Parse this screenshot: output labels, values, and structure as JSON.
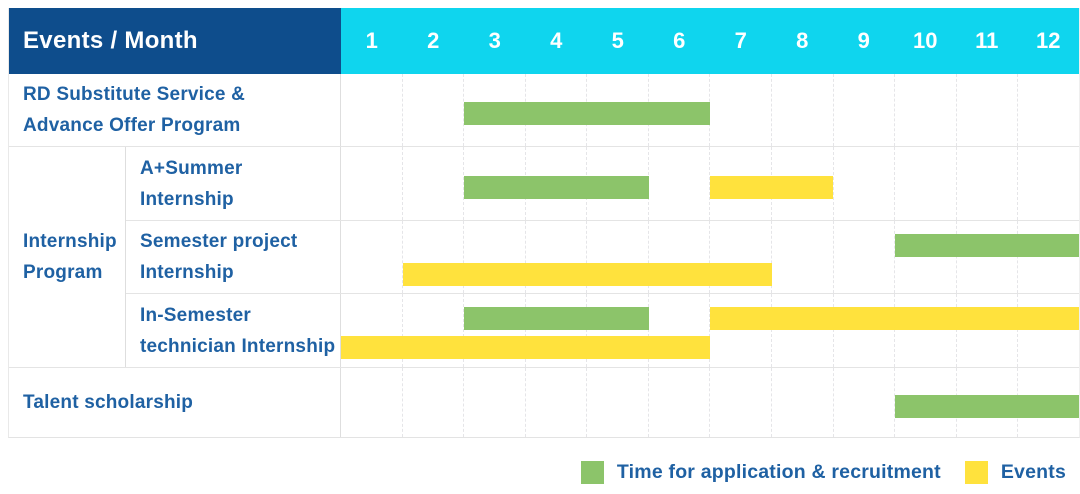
{
  "colors": {
    "navy_header_bg": "#0e4d8c",
    "cyan_months_bg": "#0fd5ee",
    "green_application": "#8cc46a",
    "yellow_event": "#ffe23d",
    "label_text_blue": "#1f61a3"
  },
  "table": {
    "header_label": "Events / Month",
    "months": [
      "1",
      "2",
      "3",
      "4",
      "5",
      "6",
      "7",
      "8",
      "9",
      "10",
      "11",
      "12"
    ],
    "rows": [
      {
        "kind": "simple",
        "name": "rd-substitute",
        "label_lines": [
          "RD Substitute Service &",
          "Advance Offer Program"
        ],
        "bars": [
          {
            "type": "application",
            "start": 3,
            "end": 6,
            "track": "mid"
          }
        ]
      },
      {
        "kind": "group",
        "name": "internship-program",
        "label_lines": [
          "Internship",
          "Program"
        ],
        "children": [
          {
            "name": "a-plus-summer-internship",
            "label_lines": [
              "A+Summer",
              "Internship"
            ],
            "bars": [
              {
                "type": "application",
                "start": 3,
                "end": 5,
                "track": "mid"
              },
              {
                "type": "event",
                "start": 7,
                "end": 8,
                "track": "mid"
              }
            ]
          },
          {
            "name": "semester-project-internship",
            "label_lines": [
              "Semester project",
              "Internship"
            ],
            "bars": [
              {
                "type": "application",
                "start": 10,
                "end": 12,
                "track": "upper"
              },
              {
                "type": "event",
                "start": 2,
                "end": 7,
                "track": "lower"
              }
            ]
          },
          {
            "name": "in-semester-technician-internship",
            "label_lines": [
              "In-Semester",
              "technician Internship"
            ],
            "bars": [
              {
                "type": "application",
                "start": 3,
                "end": 5,
                "track": "upper"
              },
              {
                "type": "event",
                "start": 7,
                "end": 12,
                "track": "upper"
              },
              {
                "type": "event",
                "start": 1,
                "end": 6,
                "track": "lower"
              }
            ]
          }
        ]
      },
      {
        "kind": "simple",
        "name": "talent-scholarship",
        "label_lines": [
          "Talent scholarship"
        ],
        "bars": [
          {
            "type": "application",
            "start": 10,
            "end": 12,
            "track": "mid"
          }
        ]
      }
    ]
  },
  "legend": {
    "items": [
      {
        "type": "application",
        "label": "Time for application & recruitment"
      },
      {
        "type": "event",
        "label": "Events"
      }
    ]
  },
  "chart_data": {
    "type": "table",
    "title": "Events / Month",
    "x_axis": {
      "label": "Month",
      "ticks": [
        1,
        2,
        3,
        4,
        5,
        6,
        7,
        8,
        9,
        10,
        11,
        12
      ],
      "range": [
        1,
        12
      ]
    },
    "grid": true,
    "legend_position": "bottom-right",
    "legend": [
      {
        "name": "Time for application & recruitment",
        "color": "#8cc46a"
      },
      {
        "name": "Events",
        "color": "#ffe23d"
      }
    ],
    "rows": [
      {
        "event": "RD Substitute Service & Advance Offer Program",
        "group": null,
        "application_recruitment_month_ranges": [
          [
            3,
            6
          ]
        ],
        "event_month_ranges": []
      },
      {
        "event": "A+Summer Internship",
        "group": "Internship Program",
        "application_recruitment_month_ranges": [
          [
            3,
            5
          ]
        ],
        "event_month_ranges": [
          [
            7,
            8
          ]
        ]
      },
      {
        "event": "Semester project Internship",
        "group": "Internship Program",
        "application_recruitment_month_ranges": [
          [
            10,
            12
          ]
        ],
        "event_month_ranges": [
          [
            2,
            7
          ]
        ]
      },
      {
        "event": "In-Semester technician Internship",
        "group": "Internship Program",
        "application_recruitment_month_ranges": [
          [
            3,
            5
          ]
        ],
        "event_month_ranges": [
          [
            1,
            6
          ],
          [
            7,
            12
          ]
        ]
      },
      {
        "event": "Talent scholarship",
        "group": null,
        "application_recruitment_month_ranges": [
          [
            10,
            12
          ]
        ],
        "event_month_ranges": []
      }
    ]
  }
}
